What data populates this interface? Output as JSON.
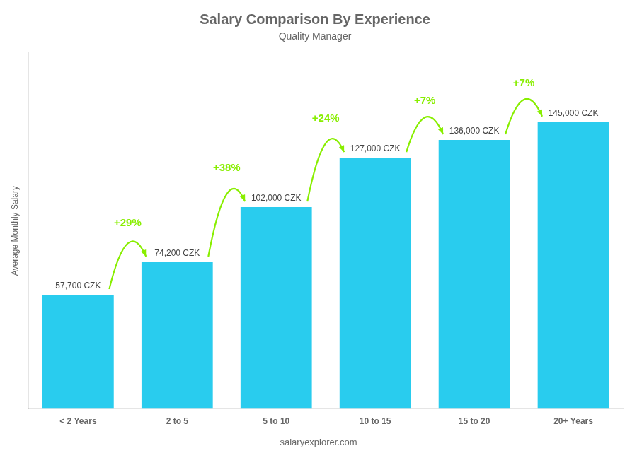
{
  "chart_data": {
    "type": "bar",
    "title": "Salary Comparison By Experience",
    "subtitle": "Quality Manager",
    "categories": [
      "< 2 Years",
      "2 to 5",
      "5 to 10",
      "10 to 15",
      "15 to 20",
      "20+ Years"
    ],
    "values": [
      57700,
      74200,
      102000,
      127000,
      136000,
      145000
    ],
    "value_labels": [
      "57,700 CZK",
      "74,200 CZK",
      "102,000 CZK",
      "127,000 CZK",
      "136,000 CZK",
      "145,000 CZK"
    ],
    "data_labels": true,
    "color": "#29ccee",
    "y_label": "Average Monthly Salary",
    "ylim": [
      0,
      180000
    ],
    "yticks": [],
    "tick_labels": "x",
    "grid": false,
    "annotations": [
      {
        "text": "+29%",
        "color": "#88ee00"
      },
      {
        "text": "+38%",
        "color": "#88ee00"
      },
      {
        "text": "+24%",
        "color": "#88ee00"
      },
      {
        "text": "+7%",
        "color": "#88ee00"
      },
      {
        "text": "+7%",
        "color": "#88ee00"
      }
    ],
    "footer": "salaryexplorer.com"
  }
}
